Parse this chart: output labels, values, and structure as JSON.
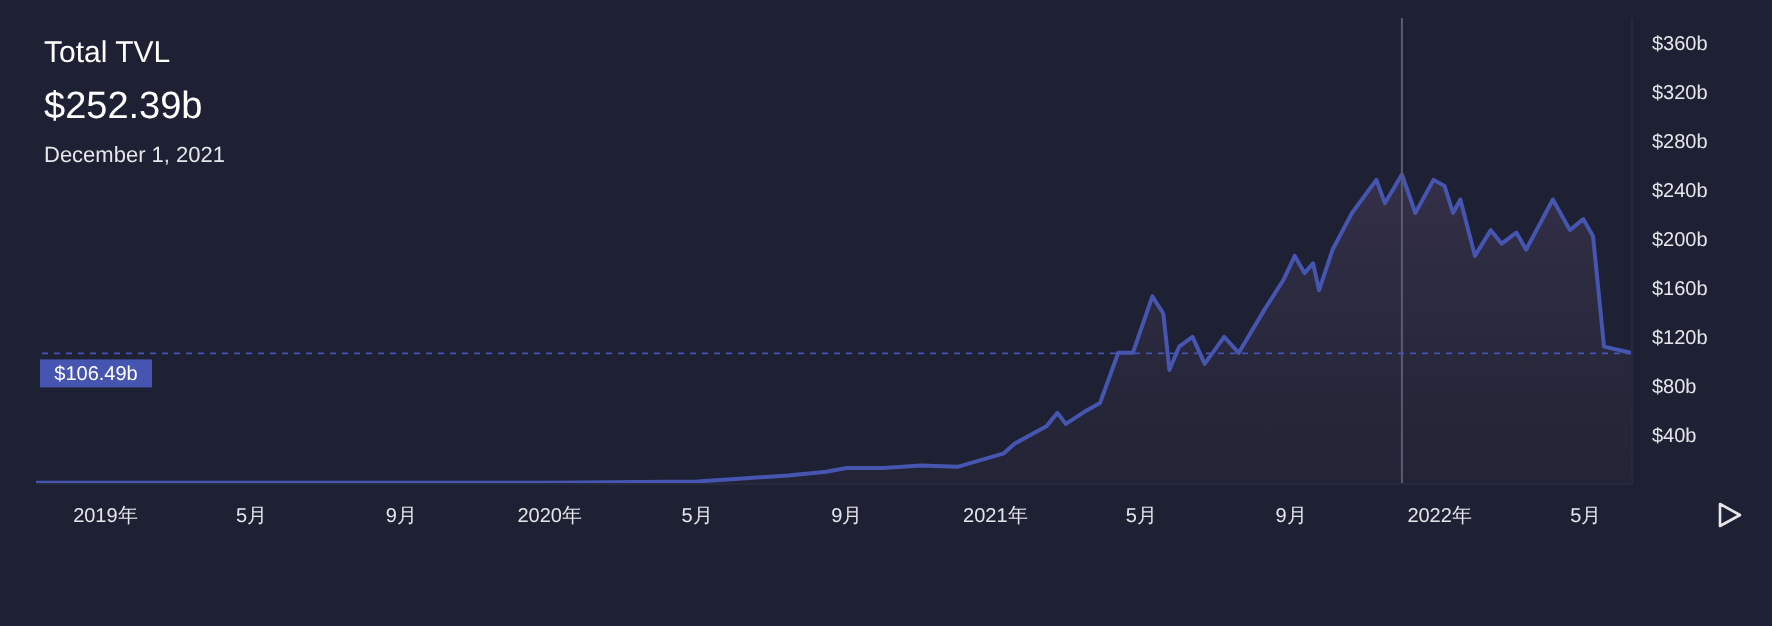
{
  "chart_data": {
    "type": "area",
    "title": "Total TVL",
    "subtitle": "$252.39b",
    "annotations": [
      "December 1, 2021"
    ],
    "x": [
      "2018-11-05",
      "2019-01-01",
      "2019-05-01",
      "2019-09-01",
      "2020-01-01",
      "2020-05-01",
      "2020-06-01",
      "2020-07-15",
      "2020-08-15",
      "2020-09-01",
      "2020-10-01",
      "2020-11-01",
      "2020-12-01",
      "2021-01-08",
      "2021-01-17",
      "2021-02-12",
      "2021-02-21",
      "2021-02-28",
      "2021-03-17",
      "2021-03-28",
      "2021-04-12",
      "2021-04-24",
      "2021-05-10",
      "2021-05-19",
      "2021-05-24",
      "2021-06-01",
      "2021-06-12",
      "2021-06-22",
      "2021-07-08",
      "2021-07-20",
      "2021-08-10",
      "2021-08-26",
      "2021-09-04",
      "2021-09-12",
      "2021-09-19",
      "2021-09-24",
      "2021-10-05",
      "2021-10-21",
      "2021-11-10",
      "2021-11-17",
      "2021-12-01",
      "2021-12-12",
      "2021-12-27",
      "2022-01-05",
      "2022-01-12",
      "2022-01-18",
      "2022-01-30",
      "2022-02-12",
      "2022-02-21",
      "2022-03-05",
      "2022-03-13",
      "2022-04-04",
      "2022-04-18",
      "2022-04-29",
      "2022-05-07",
      "2022-05-16",
      "2022-06-07"
    ],
    "series": [
      {
        "color": "#4655b0",
        "values": [
          1,
          1,
          1,
          1,
          1,
          2,
          4,
          7,
          10,
          13,
          13,
          15,
          14,
          25,
          33,
          47,
          58,
          49,
          60,
          66,
          107,
          107,
          153,
          139,
          93,
          112,
          120,
          98,
          120,
          107,
          142,
          167,
          186,
          172,
          180,
          158,
          191,
          221,
          248,
          229,
          252.39,
          221,
          248,
          243,
          221,
          232,
          186,
          207,
          196,
          205,
          191,
          232,
          207,
          216,
          202,
          112,
          107
        ]
      }
    ],
    "xlim": [
      "2018-11-05",
      "2022-06-08"
    ],
    "xticks": [
      {
        "value": "2019-01-01",
        "label": "2019年"
      },
      {
        "value": "2019-05-01",
        "label": "5月"
      },
      {
        "value": "2019-09-01",
        "label": "9月"
      },
      {
        "value": "2020-01-01",
        "label": "2020年"
      },
      {
        "value": "2020-05-01",
        "label": "5月"
      },
      {
        "value": "2020-09-01",
        "label": "9月"
      },
      {
        "value": "2021-01-01",
        "label": "2021年"
      },
      {
        "value": "2021-05-01",
        "label": "5月"
      },
      {
        "value": "2021-09-01",
        "label": "9月"
      },
      {
        "value": "2022-01-01",
        "label": "2022年"
      },
      {
        "value": "2022-05-01",
        "label": "5月"
      }
    ],
    "ylim": [
      0,
      380
    ],
    "yticks": [
      {
        "value": 40,
        "label": "$40b"
      },
      {
        "value": 80,
        "label": "$80b"
      },
      {
        "value": 120,
        "label": "$120b"
      },
      {
        "value": 160,
        "label": "$160b"
      },
      {
        "value": 200,
        "label": "$200b"
      },
      {
        "value": 240,
        "label": "$240b"
      },
      {
        "value": 280,
        "label": "$280b"
      },
      {
        "value": 320,
        "label": "$320b"
      },
      {
        "value": 360,
        "label": "$360b"
      }
    ],
    "ref_lines": [
      {
        "axis": "x",
        "value": "2021-12-01",
        "color": "#5a5d6e",
        "line_style": "solid"
      },
      {
        "axis": "y",
        "value": 106.49,
        "label": "$106.49b",
        "color": "#4655b0",
        "line_style": "dashed"
      }
    ],
    "grid": false,
    "legend": false
  }
}
